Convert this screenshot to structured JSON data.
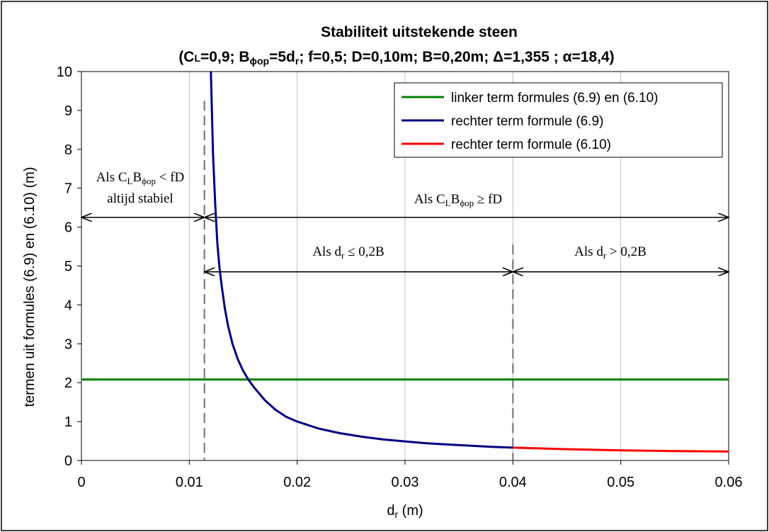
{
  "chart_data": {
    "type": "line",
    "title": "Stabiliteit uitstekende steen",
    "subtitle": {
      "open": "(C",
      "cl_sub": "L",
      "mid1": "=0,9; B",
      "bphi_sub": "ϕop",
      "mid2": "=5d",
      "dr_sub": "r",
      "rest": "; f=0,5; D=0,10m; B=0,20m; Δ=1,355 ; α=18,4)"
    },
    "xlabel": {
      "main": "d",
      "sub": "r",
      "unit": " (m)"
    },
    "ylabel": "termen uit formules (6.9) en (6.10) (m)",
    "xlim": [
      0,
      0.06
    ],
    "ylim": [
      0,
      10
    ],
    "xticks": [
      0,
      0.01,
      0.02,
      0.03,
      0.04,
      0.05,
      0.06
    ],
    "xtick_labels": [
      "0",
      "0.01",
      "0.02",
      "0.03",
      "0.04",
      "0.05",
      "0.06"
    ],
    "yticks": [
      0,
      1,
      2,
      3,
      4,
      5,
      6,
      7,
      8,
      9,
      10
    ],
    "ytick_labels": [
      "0",
      "1",
      "2",
      "3",
      "4",
      "5",
      "6",
      "7",
      "8",
      "9",
      "10"
    ],
    "vertical_gridlines": [
      0.01,
      0.02,
      0.03,
      0.04,
      0.05
    ],
    "legend_position": "top-right",
    "series": [
      {
        "name": "linker term formules (6.9) en (6.10)",
        "color": "#008000",
        "x": [
          0,
          0.06
        ],
        "y": [
          2.08,
          2.08
        ]
      },
      {
        "name": "rechter term formule (6.9)",
        "color": "#000080",
        "x": [
          0.012,
          0.0122,
          0.0124,
          0.0126,
          0.0128,
          0.013,
          0.0133,
          0.0136,
          0.014,
          0.0145,
          0.015,
          0.0155,
          0.016,
          0.017,
          0.018,
          0.019,
          0.02,
          0.022,
          0.024,
          0.026,
          0.028,
          0.03,
          0.032,
          0.034,
          0.036,
          0.038,
          0.04
        ],
        "y": [
          10.0,
          7.9,
          6.6,
          5.6,
          4.95,
          4.5,
          3.9,
          3.45,
          3.0,
          2.6,
          2.3,
          2.07,
          1.88,
          1.55,
          1.3,
          1.12,
          1.0,
          0.82,
          0.7,
          0.61,
          0.54,
          0.49,
          0.44,
          0.41,
          0.38,
          0.35,
          0.33
        ]
      },
      {
        "name": "rechter term formule (6.10)",
        "color": "#ff0000",
        "x": [
          0.04,
          0.045,
          0.05,
          0.055,
          0.06
        ],
        "y": [
          0.33,
          0.29,
          0.26,
          0.24,
          0.23
        ]
      }
    ],
    "dashed_lines": [
      {
        "x": 0.0114,
        "y_top": 9.25
      },
      {
        "x": 0.04,
        "y_top": 5.55
      }
    ],
    "annotations": {
      "stable_line1": {
        "a": "Als C",
        "b": "L",
        "c": "B",
        "d": "ϕop",
        "e": " < fD"
      },
      "stable_line2": "altijd stabiel",
      "geq": {
        "a": "Als C",
        "b": "L",
        "c": "B",
        "d": "ϕop",
        "e": " ≥ fD"
      },
      "leq": {
        "a": "Als d",
        "b": "r",
        "c": " ≤ 0,2B"
      },
      "gt": {
        "a": "Als d",
        "b": "r",
        "c": " > 0,2B"
      }
    },
    "arrows": [
      {
        "x1": 0,
        "x2": 0.0114,
        "y": 6.25
      },
      {
        "x1": 0.0114,
        "x2": 0.06,
        "y": 6.25
      },
      {
        "x1": 0.0114,
        "x2": 0.04,
        "y": 4.85
      },
      {
        "x1": 0.04,
        "x2": 0.06,
        "y": 4.85
      }
    ]
  }
}
